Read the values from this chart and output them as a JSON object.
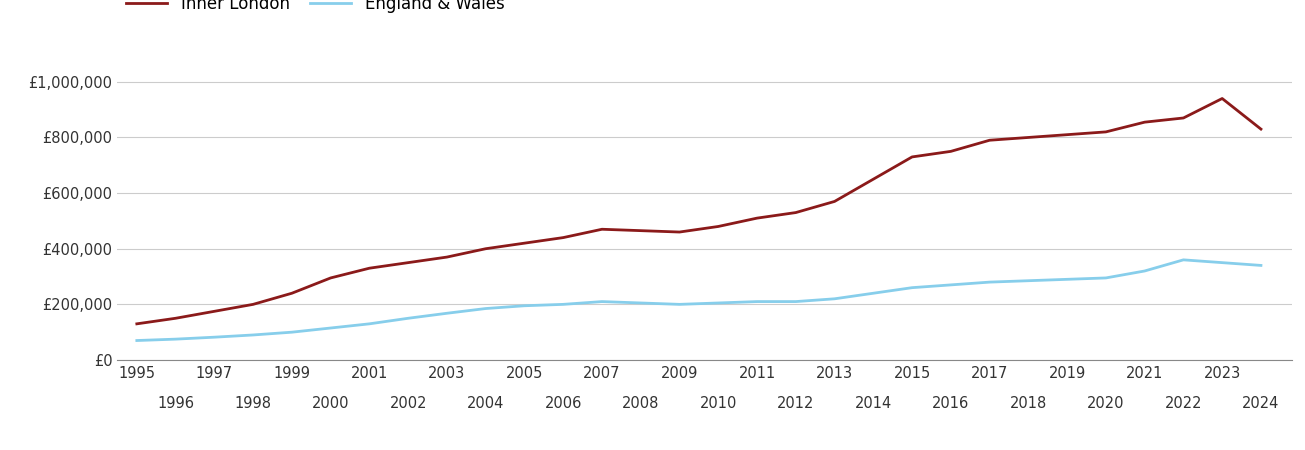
{
  "inner_london": {
    "years": [
      1995,
      1996,
      1997,
      1998,
      1999,
      2000,
      2001,
      2002,
      2003,
      2004,
      2005,
      2006,
      2007,
      2008,
      2009,
      2010,
      2011,
      2012,
      2013,
      2014,
      2015,
      2016,
      2017,
      2018,
      2019,
      2020,
      2021,
      2022,
      2023,
      2024
    ],
    "values": [
      130000,
      150000,
      175000,
      200000,
      240000,
      295000,
      330000,
      350000,
      370000,
      400000,
      420000,
      440000,
      470000,
      465000,
      460000,
      480000,
      510000,
      530000,
      570000,
      650000,
      730000,
      750000,
      790000,
      800000,
      810000,
      820000,
      855000,
      870000,
      940000,
      830000
    ]
  },
  "england_wales": {
    "years": [
      1995,
      1996,
      1997,
      1998,
      1999,
      2000,
      2001,
      2002,
      2003,
      2004,
      2005,
      2006,
      2007,
      2008,
      2009,
      2010,
      2011,
      2012,
      2013,
      2014,
      2015,
      2016,
      2017,
      2018,
      2019,
      2020,
      2021,
      2022,
      2023,
      2024
    ],
    "values": [
      70000,
      75000,
      82000,
      90000,
      100000,
      115000,
      130000,
      150000,
      168000,
      185000,
      195000,
      200000,
      210000,
      205000,
      200000,
      205000,
      210000,
      210000,
      220000,
      240000,
      260000,
      270000,
      280000,
      285000,
      290000,
      295000,
      320000,
      360000,
      350000,
      340000
    ]
  },
  "inner_london_color": "#8B1A1A",
  "england_wales_color": "#87CEEB",
  "inner_london_label": "Inner London",
  "england_wales_label": "England & Wales",
  "ylim": [
    0,
    1100000
  ],
  "yticks": [
    0,
    200000,
    400000,
    600000,
    800000,
    1000000
  ],
  "ytick_labels": [
    "£0",
    "£200,000",
    "£400,000",
    "£600,000",
    "£800,000",
    "£1,000,000"
  ],
  "grid_color": "#cccccc",
  "background_color": "#ffffff",
  "line_width": 2.0,
  "legend_fontsize": 12,
  "tick_fontsize": 10.5,
  "odd_tick_years": [
    1995,
    1997,
    1999,
    2001,
    2003,
    2005,
    2007,
    2009,
    2011,
    2013,
    2015,
    2017,
    2019,
    2021,
    2023
  ],
  "even_tick_years": [
    1996,
    1998,
    2000,
    2002,
    2004,
    2006,
    2008,
    2010,
    2012,
    2014,
    2016,
    2018,
    2020,
    2022,
    2024
  ],
  "xlim_left": 1994.5,
  "xlim_right": 2024.8
}
